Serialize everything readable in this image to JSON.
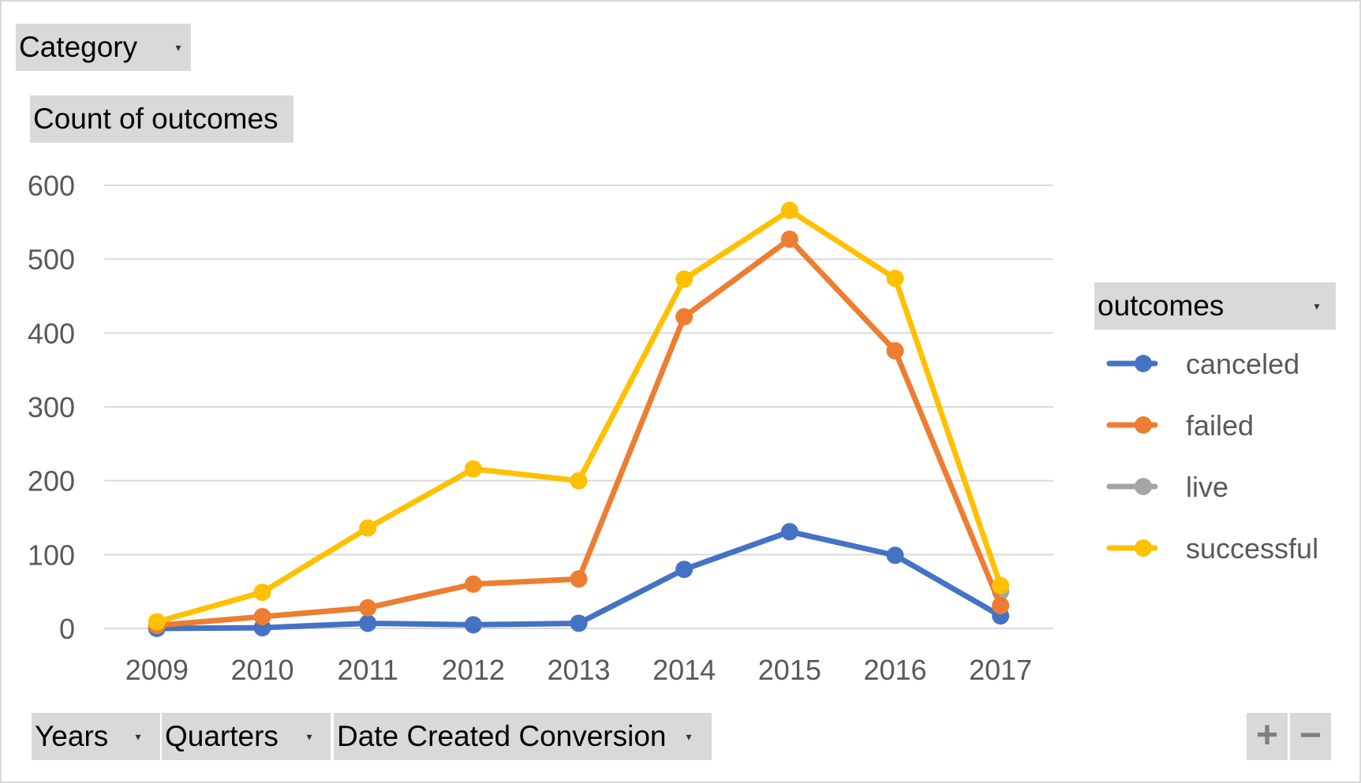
{
  "filters": {
    "category": "Category",
    "value_field": "Count of outcomes",
    "years": "Years",
    "quarters": "Quarters",
    "date_created": "Date Created Conversion",
    "legend_field": "outcomes"
  },
  "zoom": {
    "plus": "+",
    "minus": "−"
  },
  "icons": {
    "dropdown": "dropdown-arrow-icon",
    "plus": "plus-icon",
    "minus": "minus-icon"
  },
  "colors": {
    "canceled": "#4472C4",
    "failed": "#ED7D31",
    "live": "#A5A5A5",
    "successful": "#FFC000",
    "gridline": "#d9d9d9",
    "field_button": "#d9d9d9"
  },
  "chart_data": {
    "type": "line",
    "x": [
      "2009",
      "2010",
      "2011",
      "2012",
      "2013",
      "2014",
      "2015",
      "2016",
      "2017"
    ],
    "ylim": [
      0,
      600
    ],
    "yticks": [
      0,
      100,
      200,
      300,
      400,
      500,
      600
    ],
    "grid": true,
    "legend_position": "right",
    "series": [
      {
        "name": "canceled",
        "color": "#4472C4",
        "values": [
          0,
          1,
          7,
          5,
          7,
          80,
          131,
          99,
          17
        ]
      },
      {
        "name": "failed",
        "color": "#ED7D31",
        "values": [
          4,
          16,
          28,
          60,
          67,
          422,
          527,
          376,
          31
        ]
      },
      {
        "name": "live",
        "color": "#A5A5A5",
        "values": [
          null,
          null,
          null,
          null,
          null,
          null,
          null,
          null,
          50
        ]
      },
      {
        "name": "successful",
        "color": "#FFC000",
        "values": [
          9,
          49,
          136,
          216,
          200,
          473,
          566,
          474,
          58
        ]
      }
    ]
  }
}
